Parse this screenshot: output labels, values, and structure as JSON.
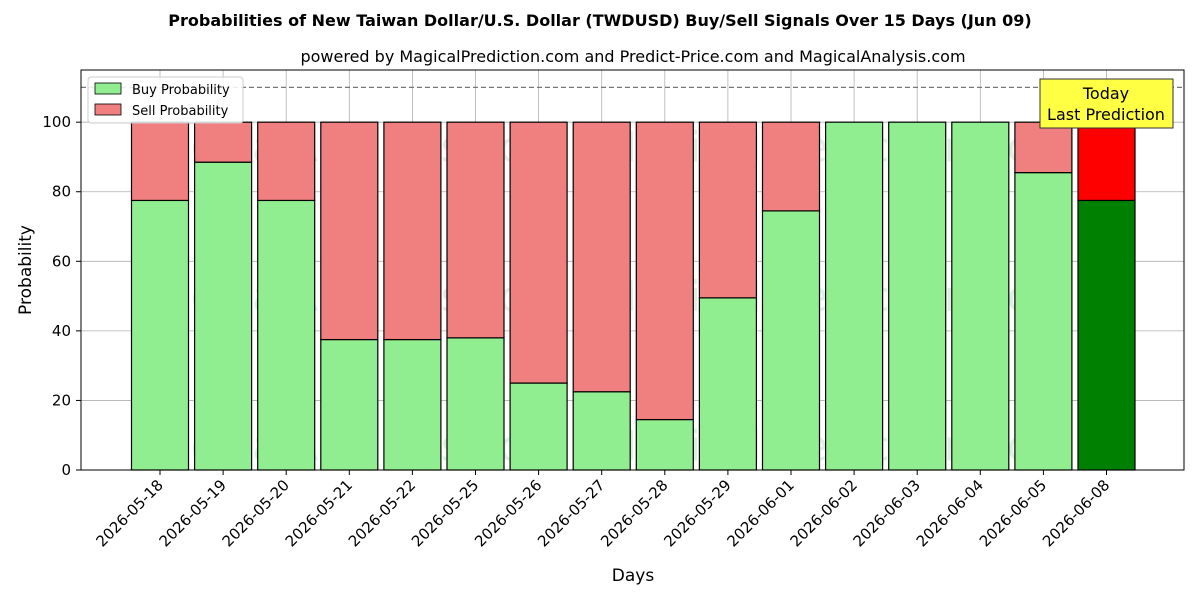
{
  "chart_data": {
    "type": "bar",
    "stacked": true,
    "title": "Probabilities of New Taiwan Dollar/U.S. Dollar (TWDUSD) Buy/Sell Signals Over 15 Days (Jun 09)",
    "subtitle": "powered by MagicalPrediction.com and Predict-Price.com and MagicalAnalysis.com",
    "xlabel": "Days",
    "ylabel": "Probability",
    "ylim": [
      0,
      115
    ],
    "yticks": [
      0,
      20,
      40,
      60,
      80,
      100
    ],
    "grid": true,
    "legend_position": "top-left",
    "reference_line": 110,
    "categories": [
      "2026-05-18",
      "2026-05-19",
      "2026-05-20",
      "2026-05-21",
      "2026-05-22",
      "2026-05-25",
      "2026-05-26",
      "2026-05-27",
      "2026-05-28",
      "2026-05-29",
      "2026-06-01",
      "2026-06-02",
      "2026-06-03",
      "2026-06-04",
      "2026-06-05",
      "2026-06-08"
    ],
    "series": [
      {
        "name": "Buy Probability",
        "color": "#90ee90",
        "highlight_color": "#008000",
        "values": [
          77.5,
          88.5,
          77.5,
          37.5,
          37.5,
          38,
          25,
          22.5,
          14.5,
          49.5,
          74.5,
          100,
          100,
          100,
          85.5,
          77.5
        ]
      },
      {
        "name": "Sell Probability",
        "color": "#f08080",
        "highlight_color": "#ff0000",
        "values": [
          22.5,
          11.5,
          22.5,
          62.5,
          62.5,
          62,
          75,
          77.5,
          85.5,
          50.5,
          25.5,
          0,
          0,
          0,
          14.5,
          22.5
        ]
      }
    ],
    "highlight_index": 15,
    "annotation": {
      "line1": "Today",
      "line2": "Last Prediction",
      "color": "#ffff44"
    },
    "watermarks": [
      "MagicalAnalysis.com",
      "MagicalPrediction.com"
    ]
  }
}
